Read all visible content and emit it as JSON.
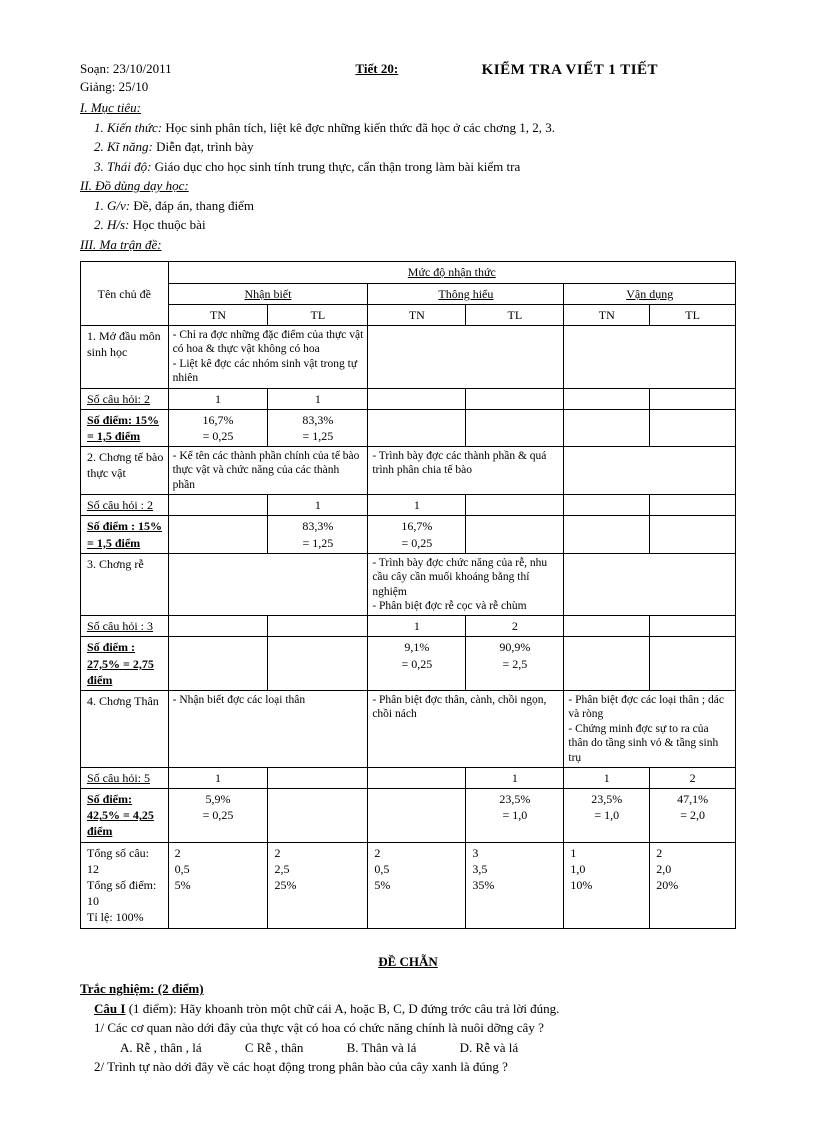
{
  "header": {
    "soan": "Soạn: 23/10/2011",
    "giang": "Giảng: 25/10",
    "tiet": "Tiết 20:",
    "title": "KIỂM TRA VIẾT 1 TIẾT"
  },
  "muc_tieu": {
    "heading": "I. Mục tiêu:",
    "kien_thuc_label": "1. Kiến thức:",
    "kien_thuc_text": "Học sinh phân tích, liệt kê đ­ợc những kiến thức đã học ở các ch­ơng 1, 2, 3.",
    "ki_nang_label": "2. Kĩ năng:",
    "ki_nang_text": "Diễn đạt, trình bày",
    "thai_do_label": "3. Thái độ:",
    "thai_do_text": "Giáo dục cho học sinh tính trung thực, cẩn thận trong làm bài kiểm tra"
  },
  "do_dung": {
    "heading": "II. Đồ dùng dạy học:",
    "gv_label": "1. G/v:",
    "gv_text": "Đề, đáp án, thang điểm",
    "hs_label": "2. H/s:",
    "hs_text": "Học thuộc bài"
  },
  "ma_tran_heading": "III. Ma trận đề:",
  "table": {
    "header": {
      "ten_chu_de": "Tên chủ đề",
      "muc_do": "Mức độ nhận thức",
      "nhan_biet": "Nhận biết",
      "thong_hieu": "Thông hiểu",
      "van_dung": "Vận dụng",
      "tn": "TN",
      "tl": "TL"
    },
    "r1": {
      "topic": "1. Mở đầu môn sinh học",
      "nb": "- Chỉ ra đ­ợc những đặc điểm của thực vật có hoa & thực vật không có hoa\n- Liệt kê đ­ợc các nhóm sinh vật trong tự nhiên"
    },
    "r1_count": {
      "label": "Số câu hỏi:  2",
      "nb_tn": "1",
      "nb_tl": "1"
    },
    "r1_score": {
      "label": "Số điểm: 15% = 1,5 điểm",
      "nb_tn": "16,7%\n= 0,25",
      "nb_tl": "83,3%\n= 1,25"
    },
    "r2": {
      "topic": "2. Ch­ơng tế bào thực vật",
      "nb": "- Kể tên các thành phần chính của tế bào thực vật và chức năng của các thành phần",
      "th": "- Trình bày đ­ợc các thành phần & quá trình phân chia tế bào"
    },
    "r2_count": {
      "label": "Số câu hỏi :  2",
      "nb_tl": "1",
      "th_tn": "1"
    },
    "r2_score": {
      "label": "Số điểm : 15% = 1,5 điểm",
      "nb_tl": "83,3%\n= 1,25",
      "th_tn": "16,7%\n= 0,25"
    },
    "r3": {
      "topic": "3. Ch­ơng rễ",
      "th": "- Trình bày đ­ợc chức năng của rễ, nhu cầu cây cần muối khoáng bằng thí nghiệm\n- Phân biệt đ­ợc rễ cọc và rễ chùm"
    },
    "r3_count": {
      "label": "Số câu hỏi :  3",
      "th_tn": "1",
      "th_tl": "2"
    },
    "r3_score": {
      "label": "Số điểm : 27,5% = 2,75 điểm",
      "th_tn": "9,1%\n= 0,25",
      "th_tl": "90,9%\n= 2,5"
    },
    "r4": {
      "topic": "4. Ch­ơng Thân",
      "nb": "- Nhận biết đ­ợc các loại thân",
      "th": "- Phân biệt đ­ợc thân, cành, chồi ngọn, chồi nách",
      "vd": "- Phân biệt đ­ợc các loại thân ; dác và ròng\n- Chứng minh đ­ợc sự to ra của thân do tầng sinh vỏ & tầng sinh trụ"
    },
    "r4_count": {
      "label": "Số câu hỏi:  5",
      "nb_tn": "1",
      "th_tl": "1",
      "vd_tn": "1",
      "vd_tl": "2"
    },
    "r4_score": {
      "label": "Số điểm: 42,5% = 4,25 điểm",
      "nb_tn": "5,9%\n= 0,25",
      "th_tl": "23,5%\n= 1,0",
      "vd_tn": "23,5%\n= 1,0",
      "vd_tl": "47,1%\n= 2,0"
    },
    "total": {
      "label": "Tổng số câu: 12\nTổng số điểm: 10\nTỉ lệ: 100%",
      "nb_tn": "2\n0,5\n5%",
      "nb_tl": "2\n2,5\n25%",
      "th_tn": "2\n0,5\n5%",
      "th_tl": "3\n3,5\n35%",
      "vd_tn": "1\n1,0\n10%",
      "vd_tl": "2\n2,0\n20%"
    }
  },
  "de_chan": "ĐỀ CHẴN",
  "tracnghiem": {
    "heading": "Trắc nghiệm:  (2 điểm)",
    "cau1_label": "Câu I",
    "cau1_text": "(1 điểm): Hãy khoanh tròn một chữ cái A, hoặc B, C, D đứng tr­ớc câu trả lời đúng.",
    "q1": "1/ Các cơ quan nào d­ới đây của thực vật có hoa có chức năng chính là nuôi d­ỡng cây ?",
    "q1_opts": {
      "a": "A. Rễ , thân , lá",
      "c": "C Rễ , thân",
      "b": "B. Thân và lá",
      "d": "D. Rễ và lá"
    },
    "q2": "2/ Trình tự nào d­ới đây về các hoạt động trong phân bào của cây xanh là đúng ?"
  }
}
